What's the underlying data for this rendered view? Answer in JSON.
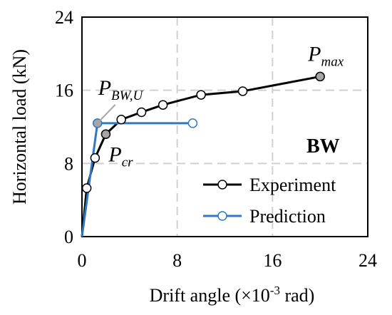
{
  "chart_data": {
    "type": "line",
    "xlabel": "Drift angle (×10",
    "xlabel_sup": "-3",
    "xlabel_end": " rad)",
    "ylabel": "Horizontal load (kN)",
    "xlim": [
      0,
      24
    ],
    "ylim": [
      0,
      24
    ],
    "xticks": [
      0,
      8,
      16,
      24
    ],
    "yticks": [
      0,
      8,
      16,
      24
    ],
    "grid": "dashed",
    "legend_position": "bottom-right",
    "specimen_label": "BW",
    "series": [
      {
        "name": "Experiment",
        "color": "#000000",
        "marker_fill": "#ffffff",
        "x": [
          0,
          0.4,
          1.1,
          2.0,
          3.3,
          5.0,
          6.8,
          10.0,
          13.5,
          20.0
        ],
        "y": [
          0,
          5.3,
          8.6,
          11.2,
          12.8,
          13.6,
          14.4,
          15.5,
          15.9,
          17.5
        ]
      },
      {
        "name": "Prediction",
        "color": "#2f78c2",
        "marker_fill": "#ffffff",
        "x": [
          0,
          1.3,
          9.3
        ],
        "y": [
          0,
          12.4,
          12.4
        ]
      }
    ],
    "annotations": [
      {
        "id": "pmax",
        "main": "P",
        "sub": "max",
        "x": 20.0,
        "y": 17.5,
        "marker_fill": "#a6a6a6"
      },
      {
        "id": "pbwu",
        "main": "P",
        "sub": "BW,U",
        "x": 1.3,
        "y": 12.4,
        "marker_fill": "#a6a6a6"
      },
      {
        "id": "pcr",
        "main": "P",
        "sub": "cr",
        "x": 2.0,
        "y": 11.2,
        "marker_fill": "#a6a6a6"
      }
    ]
  }
}
